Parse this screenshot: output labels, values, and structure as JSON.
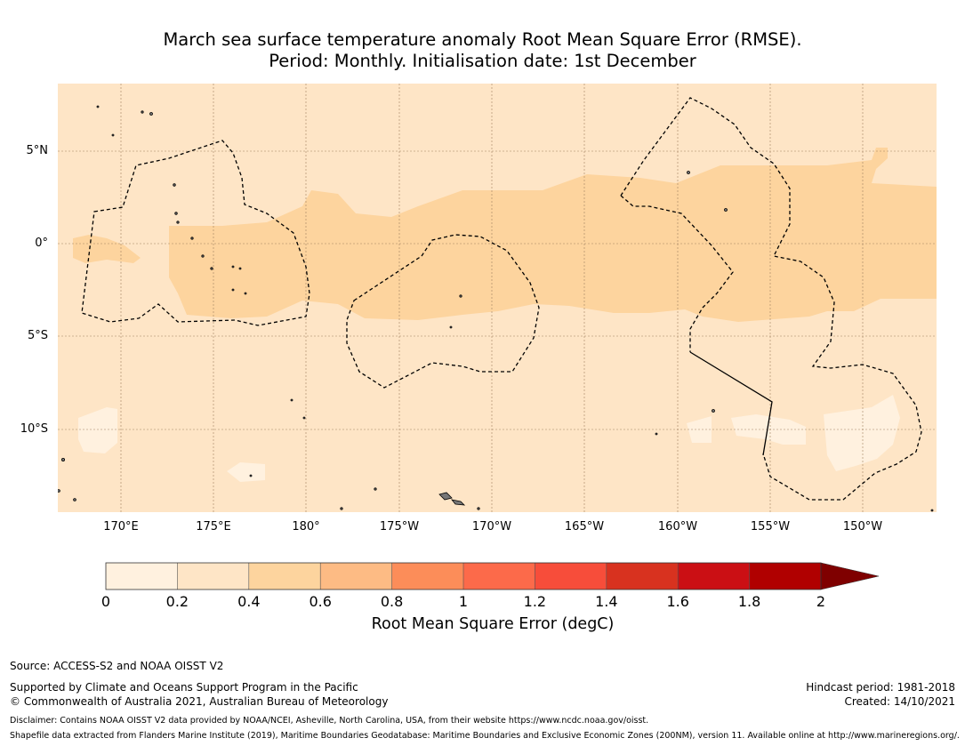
{
  "title": {
    "line1": "March sea surface temperature anomaly Root Mean Square Error (RMSE).",
    "line2": "Period: Monthly. Initialisation date: 1st December"
  },
  "map": {
    "lon_range": [
      166.5,
      -146.5
    ],
    "lat_range": [
      -14.5,
      8.5
    ],
    "lat_ticks": [
      {
        "value": 5,
        "label": "5°N"
      },
      {
        "value": 0,
        "label": "0°"
      },
      {
        "value": -5,
        "label": "5°S"
      },
      {
        "value": -10,
        "label": "10°S"
      }
    ],
    "lon_ticks": [
      {
        "value": 170,
        "label": "170°E"
      },
      {
        "value": 175,
        "label": "175°E"
      },
      {
        "value": 180,
        "label": "180°"
      },
      {
        "value": -175,
        "label": "175°W"
      },
      {
        "value": -170,
        "label": "170°W"
      },
      {
        "value": -165,
        "label": "165°W"
      },
      {
        "value": -160,
        "label": "160°W"
      },
      {
        "value": -155,
        "label": "155°W"
      },
      {
        "value": -150,
        "label": "150°W"
      }
    ],
    "colors": {
      "bin_0_0_2": "#fff1df",
      "bin_0_2_0_4": "#fee5c6",
      "bin_0_4_0_6": "#fdd49e",
      "land": "#777777",
      "grid": "#a08060"
    }
  },
  "colorbar": {
    "bounds": [
      "0",
      "0.2",
      "0.4",
      "0.6",
      "0.8",
      "1",
      "1.2",
      "1.4",
      "1.6",
      "1.8",
      "2"
    ],
    "colors": [
      "#fff1df",
      "#fee5c6",
      "#fdd49e",
      "#fdbb84",
      "#fc8d59",
      "#fc6a4a",
      "#f74d3a",
      "#d8321f",
      "#cb0f14",
      "#b00000"
    ],
    "extend_color": "#7f0000",
    "label": "Root Mean Square Error (degC)"
  },
  "footer": {
    "source": "Source: ACCESS-S2 and NOAA OISST V2",
    "supported": "Supported by Climate and Oceans Support Program in the Pacific",
    "copyright": "© Commonwealth of Australia 2021, Australian Bureau of Meteorology",
    "hindcast": "Hindcast period: 1981-2018",
    "created": "Created: 14/10/2021",
    "disclaimer": "Disclaimer: Contains NOAA OISST V2 data provided by NOAA/NCEI, Asheville, North Carolina, USA, from their website https://www.ncdc.noaa.gov/oisst.",
    "shapefile": "Shapefile data extracted from Flanders Marine Institute (2019), Maritime Boundaries Geodatabase: Maritime Boundaries and Exclusive Economic Zones (200NM), version 11. Available online at http://www.marineregions.org/."
  }
}
